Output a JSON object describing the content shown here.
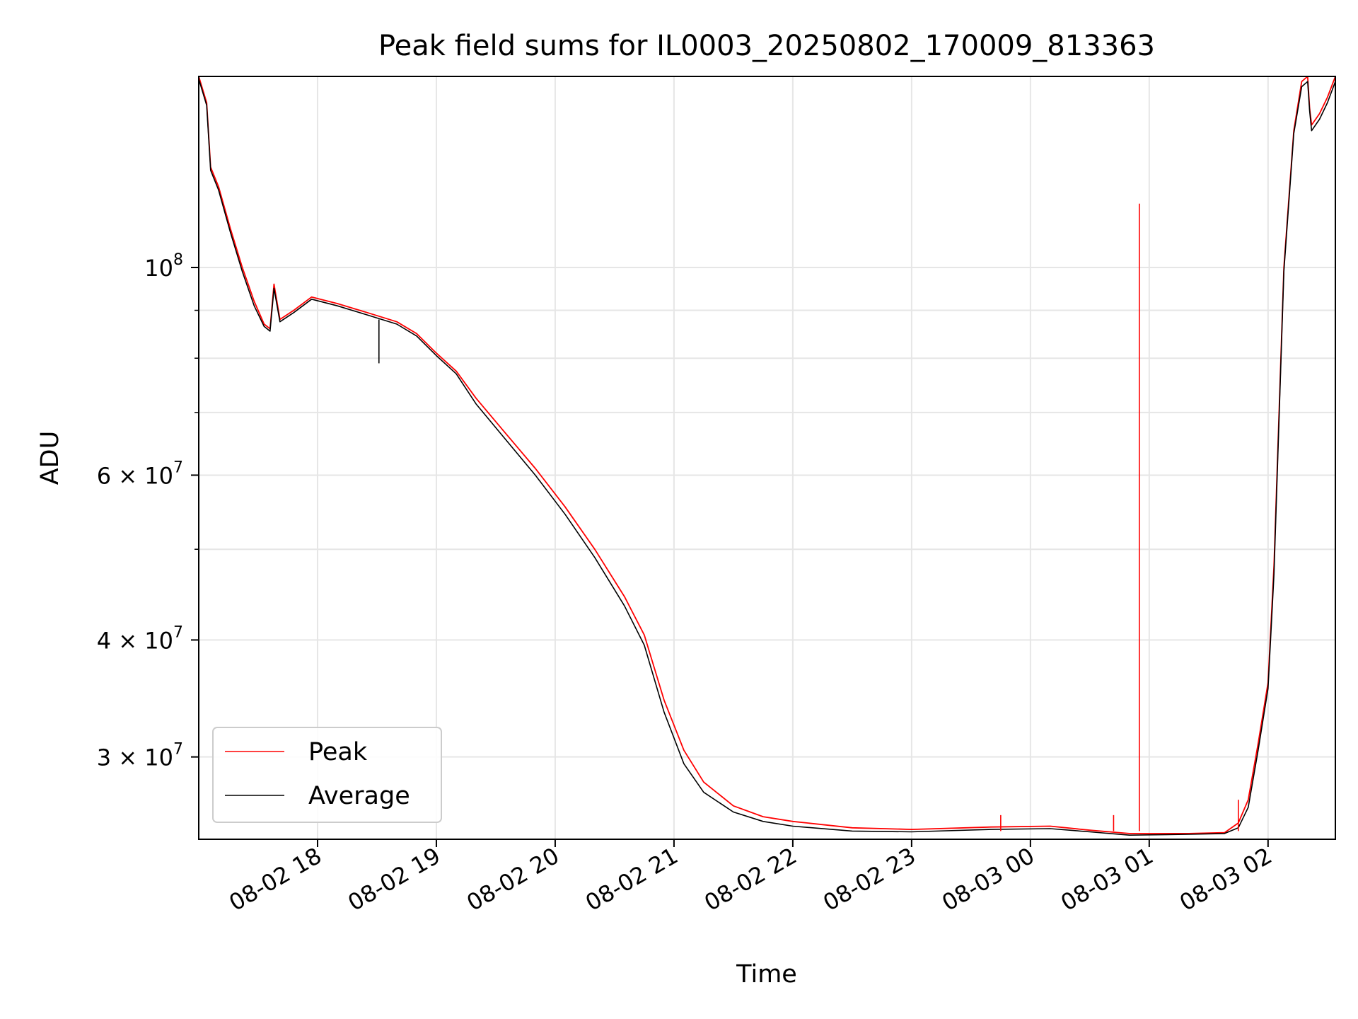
{
  "chart_data": {
    "type": "line",
    "title": "Peak field sums for IL0003_20250802_170009_813363",
    "xlabel": "Time",
    "ylabel": "ADU",
    "yscale": "log",
    "grid": true,
    "legend_position": "lower-left",
    "xlim": [
      "2025-08-02 17:00",
      "2025-08-03 02:34"
    ],
    "ylim": [
      24500000,
      160000000
    ],
    "x_ticks": [
      {
        "value": "2025-08-02 18:00",
        "label": "08-02 18"
      },
      {
        "value": "2025-08-02 19:00",
        "label": "08-02 19"
      },
      {
        "value": "2025-08-02 20:00",
        "label": "08-02 20"
      },
      {
        "value": "2025-08-02 21:00",
        "label": "08-02 21"
      },
      {
        "value": "2025-08-02 22:00",
        "label": "08-02 22"
      },
      {
        "value": "2025-08-02 23:00",
        "label": "08-02 23"
      },
      {
        "value": "2025-08-03 00:00",
        "label": "08-03 00"
      },
      {
        "value": "2025-08-03 01:00",
        "label": "08-03 01"
      },
      {
        "value": "2025-08-03 02:00",
        "label": "08-03 02"
      }
    ],
    "y_ticks": [
      {
        "value": 100000000,
        "label": "10",
        "exp": "8",
        "mantissa": ""
      },
      {
        "value": 60000000,
        "label": "10",
        "exp": "7",
        "mantissa": "6 × "
      },
      {
        "value": 40000000,
        "label": "10",
        "exp": "7",
        "mantissa": "4 × "
      },
      {
        "value": 30000000,
        "label": "10",
        "exp": "7",
        "mantissa": "3 × "
      }
    ],
    "y_minor_ticks": [
      50000000,
      70000000,
      80000000,
      90000000
    ],
    "series": [
      {
        "name": "Peak",
        "color": "#ff0000",
        "points": [
          [
            "2025-08-02 17:00",
            160000000
          ],
          [
            "2025-08-02 17:04",
            150000000
          ],
          [
            "2025-08-02 17:06",
            128000000
          ],
          [
            "2025-08-02 17:10",
            122000000
          ],
          [
            "2025-08-02 17:16",
            110000000
          ],
          [
            "2025-08-02 17:22",
            100000000
          ],
          [
            "2025-08-02 17:28",
            92000000
          ],
          [
            "2025-08-02 17:33",
            87000000
          ],
          [
            "2025-08-02 17:36",
            86000000
          ],
          [
            "2025-08-02 17:38",
            96000000
          ],
          [
            "2025-08-02 17:41",
            88000000
          ],
          [
            "2025-08-02 17:48",
            90000000
          ],
          [
            "2025-08-02 17:57",
            93000000
          ],
          [
            "2025-08-02 18:10",
            91500000
          ],
          [
            "2025-08-02 18:25",
            89500000
          ],
          [
            "2025-08-02 18:40",
            87500000
          ],
          [
            "2025-08-02 18:50",
            85000000
          ],
          [
            "2025-08-02 19:00",
            81000000
          ],
          [
            "2025-08-02 19:10",
            77500000
          ],
          [
            "2025-08-02 19:20",
            72500000
          ],
          [
            "2025-08-02 19:35",
            66500000
          ],
          [
            "2025-08-02 19:50",
            61000000
          ],
          [
            "2025-08-02 20:05",
            55500000
          ],
          [
            "2025-08-02 20:20",
            50000000
          ],
          [
            "2025-08-02 20:35",
            44500000
          ],
          [
            "2025-08-02 20:45",
            40500000
          ],
          [
            "2025-08-02 20:55",
            34500000
          ],
          [
            "2025-08-02 21:05",
            30500000
          ],
          [
            "2025-08-02 21:15",
            28200000
          ],
          [
            "2025-08-02 21:30",
            26600000
          ],
          [
            "2025-08-02 21:45",
            25900000
          ],
          [
            "2025-08-02 22:00",
            25600000
          ],
          [
            "2025-08-02 22:30",
            25200000
          ],
          [
            "2025-08-02 23:00",
            25100000
          ],
          [
            "2025-08-02 23:40",
            25250000
          ],
          [
            "2025-08-03 00:10",
            25300000
          ],
          [
            "2025-08-03 00:30",
            25050000
          ],
          [
            "2025-08-03 00:50",
            24850000
          ],
          [
            "2025-08-03 01:20",
            24850000
          ],
          [
            "2025-08-03 01:38",
            24900000
          ],
          [
            "2025-08-03 01:45",
            25500000
          ],
          [
            "2025-08-03 01:50",
            27000000
          ],
          [
            "2025-08-03 01:55",
            31000000
          ],
          [
            "2025-08-03 02:00",
            36000000
          ],
          [
            "2025-08-03 02:03",
            48000000
          ],
          [
            "2025-08-03 02:08",
            100000000
          ],
          [
            "2025-08-03 02:13",
            140000000
          ],
          [
            "2025-08-03 02:17",
            158000000
          ],
          [
            "2025-08-03 02:20",
            160000000
          ],
          [
            "2025-08-03 02:21",
            148000000
          ],
          [
            "2025-08-03 02:22",
            142000000
          ],
          [
            "2025-08-03 02:26",
            146000000
          ],
          [
            "2025-08-03 02:30",
            152000000
          ],
          [
            "2025-08-03 02:34",
            160000000
          ]
        ]
      },
      {
        "name": "Average",
        "color": "#000000",
        "points": [
          [
            "2025-08-02 17:00",
            159000000
          ],
          [
            "2025-08-02 17:04",
            149000000
          ],
          [
            "2025-08-02 17:06",
            127000000
          ],
          [
            "2025-08-02 17:10",
            121000000
          ],
          [
            "2025-08-02 17:16",
            109000000
          ],
          [
            "2025-08-02 17:22",
            99000000
          ],
          [
            "2025-08-02 17:28",
            91000000
          ],
          [
            "2025-08-02 17:33",
            86500000
          ],
          [
            "2025-08-02 17:36",
            85500000
          ],
          [
            "2025-08-02 17:38",
            95000000
          ],
          [
            "2025-08-02 17:41",
            87500000
          ],
          [
            "2025-08-02 17:48",
            89500000
          ],
          [
            "2025-08-02 17:57",
            92500000
          ],
          [
            "2025-08-02 18:10",
            91000000
          ],
          [
            "2025-08-02 18:25",
            89000000
          ],
          [
            "2025-08-02 18:40",
            87000000
          ],
          [
            "2025-08-02 18:50",
            84500000
          ],
          [
            "2025-08-02 19:00",
            80500000
          ],
          [
            "2025-08-02 19:10",
            77000000
          ],
          [
            "2025-08-02 19:20",
            71500000
          ],
          [
            "2025-08-02 19:35",
            65500000
          ],
          [
            "2025-08-02 19:50",
            60000000
          ],
          [
            "2025-08-02 20:05",
            54500000
          ],
          [
            "2025-08-02 20:20",
            49000000
          ],
          [
            "2025-08-02 20:35",
            43500000
          ],
          [
            "2025-08-02 20:45",
            39500000
          ],
          [
            "2025-08-02 20:55",
            33500000
          ],
          [
            "2025-08-02 21:05",
            29500000
          ],
          [
            "2025-08-02 21:15",
            27500000
          ],
          [
            "2025-08-02 21:30",
            26200000
          ],
          [
            "2025-08-02 21:45",
            25600000
          ],
          [
            "2025-08-02 22:00",
            25300000
          ],
          [
            "2025-08-02 22:30",
            25000000
          ],
          [
            "2025-08-02 23:00",
            24950000
          ],
          [
            "2025-08-02 23:40",
            25100000
          ],
          [
            "2025-08-03 00:10",
            25150000
          ],
          [
            "2025-08-03 00:30",
            24950000
          ],
          [
            "2025-08-03 00:50",
            24750000
          ],
          [
            "2025-08-03 01:20",
            24800000
          ],
          [
            "2025-08-03 01:38",
            24850000
          ],
          [
            "2025-08-03 01:45",
            25200000
          ],
          [
            "2025-08-03 01:50",
            26500000
          ],
          [
            "2025-08-03 01:55",
            30500000
          ],
          [
            "2025-08-03 02:00",
            35500000
          ],
          [
            "2025-08-03 02:03",
            47000000
          ],
          [
            "2025-08-03 02:08",
            99000000
          ],
          [
            "2025-08-03 02:13",
            139000000
          ],
          [
            "2025-08-03 02:17",
            156000000
          ],
          [
            "2025-08-03 02:20",
            158000000
          ],
          [
            "2025-08-03 02:21",
            147000000
          ],
          [
            "2025-08-03 02:22",
            140000000
          ],
          [
            "2025-08-03 02:26",
            144000000
          ],
          [
            "2025-08-03 02:30",
            150000000
          ],
          [
            "2025-08-03 02:34",
            158000000
          ]
        ]
      }
    ],
    "annotations": [
      {
        "series": "Peak",
        "x": "2025-08-03 00:55",
        "y": 117000000,
        "kind": "spike"
      },
      {
        "series": "Peak",
        "x": "2025-08-03 01:45",
        "y": 27000000,
        "kind": "spike"
      },
      {
        "series": "Peak",
        "x": "2025-08-03 00:42",
        "y": 26000000,
        "kind": "spike"
      },
      {
        "series": "Peak",
        "x": "2025-08-02 23:45",
        "y": 26000000,
        "kind": "spike"
      },
      {
        "series": "Average",
        "x": "2025-08-02 18:31",
        "y": 79000000,
        "kind": "spike"
      }
    ]
  }
}
